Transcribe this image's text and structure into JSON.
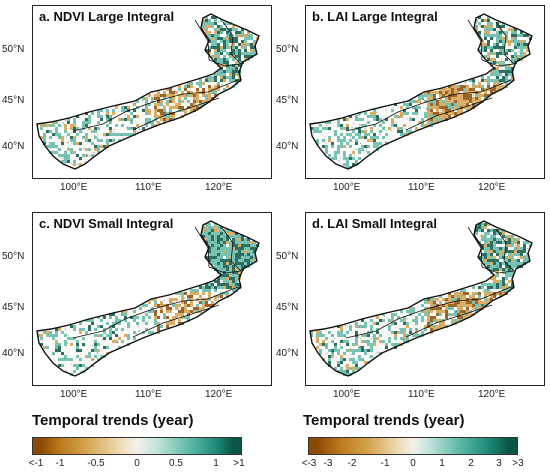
{
  "panels": [
    {
      "title": "a. NDVI Large Integral",
      "variant": "ndvi_large"
    },
    {
      "title": "b. LAI Large Integral",
      "variant": "lai_large"
    },
    {
      "title": "c. NDVI Small Integral",
      "variant": "ndvi_small"
    },
    {
      "title": "d. LAI Small Integral",
      "variant": "lai_small"
    }
  ],
  "lat_ticks": [
    "50°N",
    "45°N",
    "40°N"
  ],
  "lon_ticks": [
    "100°E",
    "110°E",
    "120°E"
  ],
  "colorbars": [
    {
      "title": "Temporal trends (year)",
      "labels": [
        "<-1",
        "-1",
        "-0.5",
        "0",
        "0.5",
        "1",
        ">1"
      ]
    },
    {
      "title": "Temporal trends (year)",
      "labels": [
        "<-3",
        "-3",
        "-2",
        "-1",
        "0",
        "1",
        "2",
        "3",
        ">3"
      ]
    }
  ],
  "colors": {
    "negative_strong": "#8c4a05",
    "negative": "#d4a14a",
    "neutral": "#f4f1ea",
    "positive": "#5fb9a8",
    "positive_strong": "#0b5647",
    "boundary": "#111111"
  }
}
